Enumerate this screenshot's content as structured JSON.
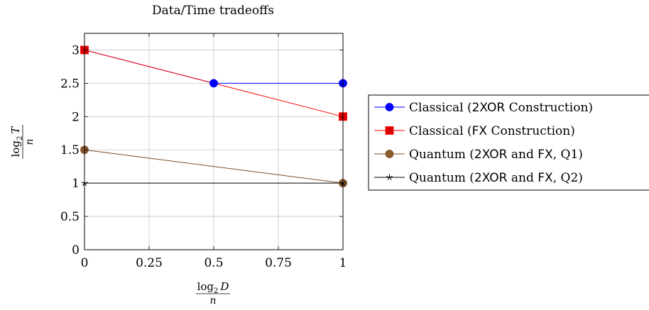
{
  "chart_data": {
    "type": "line",
    "title": "Data/Time tradeoffs",
    "xlabel": {
      "num": "log",
      "sub": "2",
      "var": "D",
      "den": "n"
    },
    "ylabel": {
      "num": "log",
      "sub": "2",
      "var": "T",
      "den": "n"
    },
    "xlim": [
      0,
      1
    ],
    "ylim": [
      0,
      3.25
    ],
    "xticks": [
      {
        "value": 0,
        "label": "0"
      },
      {
        "value": 0.25,
        "label": "0.25"
      },
      {
        "value": 0.5,
        "label": "0.5"
      },
      {
        "value": 0.75,
        "label": "0.75"
      },
      {
        "value": 1,
        "label": "1"
      }
    ],
    "yticks": [
      {
        "value": 0,
        "label": "0"
      },
      {
        "value": 0.5,
        "label": "0.5"
      },
      {
        "value": 1,
        "label": "1"
      },
      {
        "value": 1.5,
        "label": "1.5"
      },
      {
        "value": 2,
        "label": "2"
      },
      {
        "value": 2.5,
        "label": "2.5"
      },
      {
        "value": 3,
        "label": "3"
      }
    ],
    "grid": true,
    "legend_position": "right",
    "series": [
      {
        "name": "Classical (2XOR Construction)",
        "legend_parts": [
          [
            "Classical (",
            "rm"
          ],
          [
            "2XOR",
            "sf"
          ],
          [
            " Construction)",
            "rm"
          ]
        ],
        "color": "#0000ff",
        "fill": "#0000ff",
        "marker": "circle",
        "x": [
          0,
          0.5,
          1
        ],
        "y": [
          3,
          2.5,
          2.5
        ]
      },
      {
        "name": "Classical (FX Construction)",
        "legend_parts": [
          [
            "Classical (",
            "rm"
          ],
          [
            "FX",
            "sf"
          ],
          [
            " Construction)",
            "rm"
          ]
        ],
        "color": "#ff0000",
        "fill": "#dd0000",
        "marker": "square",
        "x": [
          0,
          1
        ],
        "y": [
          3,
          2
        ]
      },
      {
        "name": "Quantum (2XOR and FX, Q1)",
        "legend_parts": [
          [
            "Quantum (",
            "rm"
          ],
          [
            "2XOR",
            "sf"
          ],
          [
            " and ",
            "rm"
          ],
          [
            "FX",
            "sf"
          ],
          [
            ", Q1)",
            "rm"
          ]
        ],
        "color": "#7a4d24",
        "fill": "#8b5a2b",
        "marker": "circle",
        "x": [
          0,
          1
        ],
        "y": [
          1.5,
          1
        ]
      },
      {
        "name": "Quantum (2XOR and FX, Q2)",
        "legend_parts": [
          [
            "Quantum (",
            "rm"
          ],
          [
            "2XOR",
            "sf"
          ],
          [
            " and ",
            "rm"
          ],
          [
            "FX",
            "sf"
          ],
          [
            ", Q2)",
            "rm"
          ]
        ],
        "color": "#000000",
        "fill": "#000000",
        "marker": "star",
        "x": [
          0,
          1
        ],
        "y": [
          1,
          1
        ]
      }
    ]
  }
}
